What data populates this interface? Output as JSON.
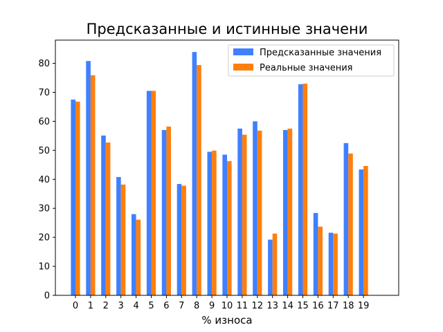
{
  "chart_data": {
    "type": "bar",
    "title": "Предсказанные и истинные значени",
    "xlabel": "% износа",
    "ylabel": "",
    "ylim": [
      0,
      88
    ],
    "yticks": [
      0,
      10,
      20,
      30,
      40,
      50,
      60,
      70,
      80
    ],
    "categories": [
      "0",
      "1",
      "2",
      "3",
      "4",
      "5",
      "6",
      "7",
      "8",
      "9",
      "10",
      "11",
      "12",
      "13",
      "14",
      "15",
      "16",
      "17",
      "18",
      "19"
    ],
    "legend_position": "top-right",
    "grid": false,
    "series": [
      {
        "name": "Предсказанные значения",
        "color": "#4080ff",
        "values": [
          67.5,
          80.8,
          55.1,
          40.8,
          28.0,
          70.5,
          57.0,
          38.4,
          83.9,
          49.5,
          48.5,
          57.5,
          60.0,
          19.2,
          57.0,
          72.8,
          28.4,
          21.6,
          52.5,
          43.4
        ]
      },
      {
        "name": "Реальные значения",
        "color": "#ff7f0e",
        "values": [
          66.8,
          75.9,
          52.7,
          38.2,
          26.1,
          70.5,
          58.2,
          37.8,
          79.4,
          49.9,
          46.3,
          55.4,
          56.8,
          21.3,
          57.5,
          73.0,
          23.7,
          21.3,
          48.9,
          44.6
        ]
      }
    ]
  }
}
